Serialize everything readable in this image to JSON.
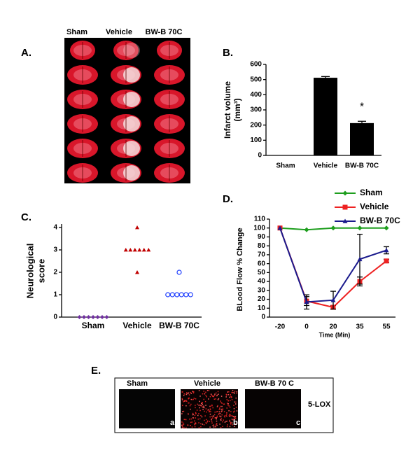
{
  "chart_data": [
    {
      "type": "bar",
      "label": "B.",
      "ylabel": [
        "Infarct volume",
        "(mm³)"
      ],
      "categories": [
        "Sham",
        "Vehicle",
        "BW-B 70C"
      ],
      "values": [
        0,
        512,
        213
      ],
      "errors": [
        0,
        8,
        12
      ],
      "color": "#000000",
      "ylim": [
        0,
        600
      ],
      "yticks": [
        0,
        100,
        200,
        300,
        400,
        500,
        600
      ],
      "annotation": {
        "text": "*",
        "category": "BW-B 70C"
      }
    },
    {
      "type": "strip",
      "label": "C.",
      "ylabel": [
        "Neurological",
        "score"
      ],
      "categories": [
        "Sham",
        "Vehicle",
        "BW-B 70C"
      ],
      "values": [
        [
          0,
          0,
          0,
          0,
          0,
          0,
          0
        ],
        [
          4,
          3,
          3,
          3,
          3,
          3,
          3,
          2
        ],
        [
          2,
          1,
          1,
          1,
          1,
          1,
          1
        ]
      ],
      "colors": [
        "#7030a0",
        "#c00000",
        "#1f3fff"
      ],
      "markers": [
        "diamond",
        "triangle",
        "circle"
      ],
      "ylim": [
        0,
        4
      ],
      "yticks": [
        0,
        1,
        2,
        3,
        4
      ]
    },
    {
      "type": "line",
      "label": "D.",
      "xlabel": "Time (Min)",
      "ylabel": "BLood Flow % Change",
      "categories": [
        "-20",
        "0",
        "20",
        "35",
        "55"
      ],
      "series": [
        {
          "name": "Sham",
          "color": "#1e9e1e",
          "marker": "diamond",
          "values": [
            100,
            98,
            100,
            100,
            100
          ],
          "errors": [
            null,
            null,
            null,
            null,
            null
          ]
        },
        {
          "name": "Vehicle",
          "color": "#ee2222",
          "marker": "square",
          "values": [
            100,
            18,
            11,
            40,
            63
          ],
          "errors": [
            null,
            5,
            2,
            5,
            2
          ]
        },
        {
          "name": "BW-B 70C",
          "color": "#1a1a8c",
          "marker": "triangle",
          "values": [
            100,
            17,
            19,
            65,
            75
          ],
          "errors": [
            null,
            8,
            10,
            28,
            4
          ]
        }
      ],
      "ylim": [
        0,
        110
      ],
      "yticks": [
        0,
        10,
        20,
        30,
        40,
        50,
        60,
        70,
        80,
        90,
        100,
        110
      ]
    }
  ],
  "panel_a": {
    "label": "A.",
    "columns": [
      "Sham",
      "Vehicle",
      "BW-B 70C"
    ]
  },
  "panel_e": {
    "label": "E.",
    "columns": [
      "Sham",
      "Vehicle",
      "BW-B 70 C"
    ],
    "letters": [
      "a",
      "b",
      "c"
    ],
    "stain": "5-LOX"
  }
}
